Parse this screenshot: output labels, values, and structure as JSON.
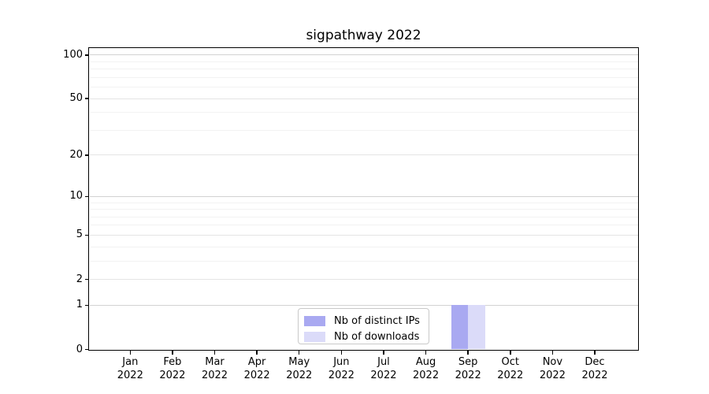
{
  "chart_data": {
    "type": "bar",
    "title": "sigpathway 2022",
    "categories": [
      "Jan",
      "Feb",
      "Mar",
      "Apr",
      "May",
      "Jun",
      "Jul",
      "Aug",
      "Sep",
      "Oct",
      "Nov",
      "Dec"
    ],
    "category_year": "2022",
    "series": [
      {
        "name": "Nb of distinct IPs",
        "color": "#a9a9f1",
        "values": [
          0,
          0,
          0,
          0,
          0,
          0,
          0,
          0,
          1,
          0,
          0,
          0
        ]
      },
      {
        "name": "Nb of downloads",
        "color": "#dbdbf9",
        "values": [
          0,
          0,
          0,
          0,
          0,
          0,
          0,
          0,
          1,
          0,
          0,
          0
        ]
      }
    ],
    "xlabel": "",
    "ylabel": "",
    "yscale": "log1p",
    "ylim": [
      0,
      113
    ],
    "yticks": [
      0,
      1,
      2,
      5,
      10,
      20,
      50,
      100
    ],
    "minor_gridlines": [
      3,
      4,
      6,
      7,
      8,
      9,
      30,
      40,
      60,
      70,
      80,
      90
    ],
    "decade_gridlines": [
      1,
      10,
      100
    ],
    "grid": "horizontal",
    "legend_position": "bottom-center-inside",
    "colors": {
      "background": "#ffffff",
      "spine": "#000000",
      "text": "#000000",
      "grid_major": "#d2d2d2",
      "grid_mid": "#e4e4e4",
      "grid_minor": "#f2f2f2"
    }
  }
}
